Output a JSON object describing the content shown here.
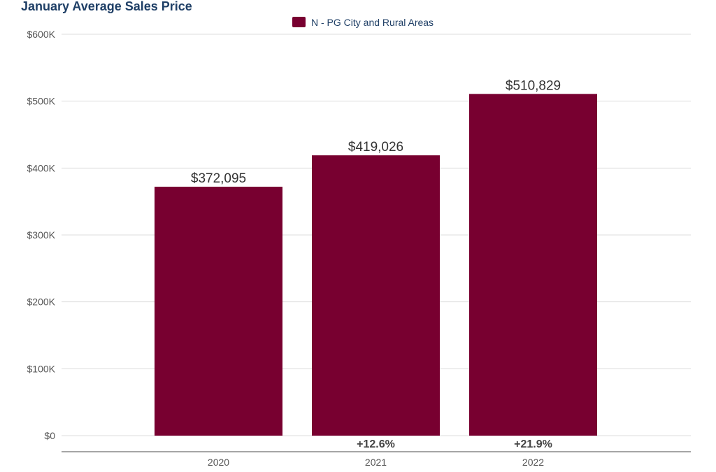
{
  "colors": {
    "bar": "#780030",
    "title": "#1f3f66",
    "legend_text": "#1f3f66",
    "axis_text": "#555555",
    "data_label": "#333333",
    "change_label": "#444444",
    "grid": "#dddddd",
    "baseline": "#888888"
  },
  "chart_data": {
    "type": "bar",
    "title": "January Average Sales Price",
    "legend": [
      "N - PG City and Rural Areas"
    ],
    "categories": [
      "2020",
      "2021",
      "2022"
    ],
    "series": [
      {
        "name": "N - PG City and Rural Areas",
        "values": [
          372095,
          419026,
          510829
        ],
        "labels": [
          "$372,095",
          "$419,026",
          "$510,829"
        ]
      }
    ],
    "changes": [
      "",
      "+12.6%",
      "+21.9%"
    ],
    "ylim": [
      0,
      600000
    ],
    "yticks": [
      0,
      100000,
      200000,
      300000,
      400000,
      500000,
      600000
    ],
    "ytick_labels": [
      "$0",
      "$100K",
      "$200K",
      "$300K",
      "$400K",
      "$500K",
      "$600K"
    ],
    "xlabel": "",
    "ylabel": "",
    "grid": true,
    "legend_position": "top-center"
  }
}
